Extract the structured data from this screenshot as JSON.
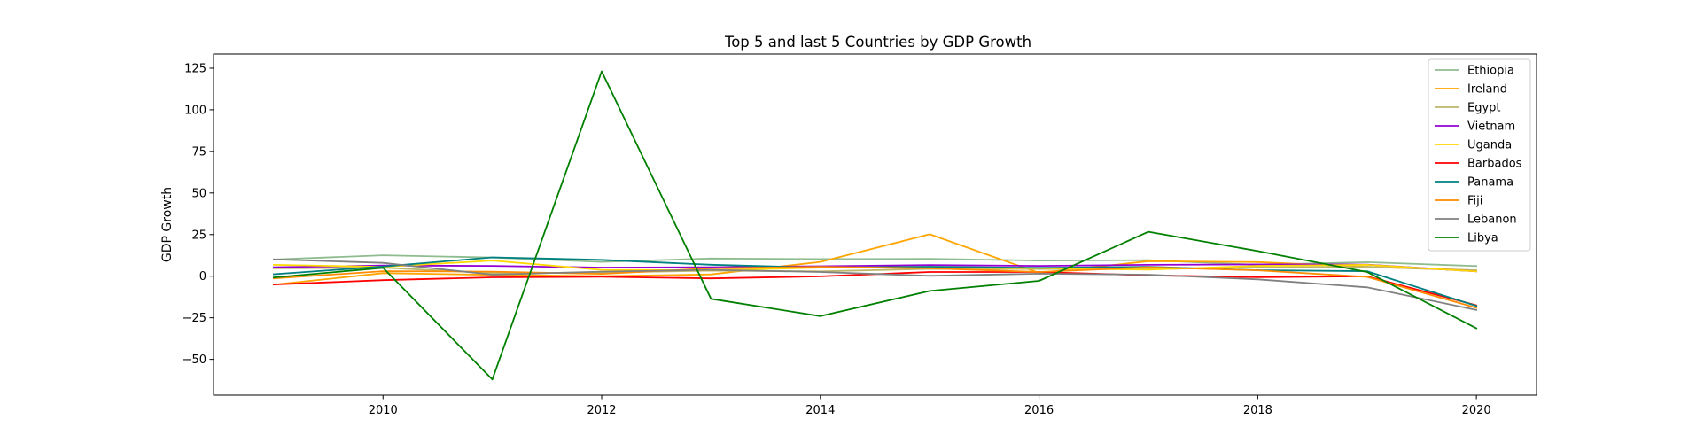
{
  "chart_data": {
    "type": "line",
    "title": "Top 5 and last 5 Countries by GDP Growth",
    "xlabel": "",
    "ylabel": "GDP Growth",
    "x": [
      2009,
      2010,
      2011,
      2012,
      2013,
      2014,
      2015,
      2016,
      2017,
      2018,
      2019,
      2020
    ],
    "xlim": [
      2008.45,
      2020.55
    ],
    "ylim": [
      -71.5,
      133.5
    ],
    "xticks": [
      2010,
      2012,
      2014,
      2016,
      2018,
      2020
    ],
    "yticks": [
      -50,
      -25,
      0,
      25,
      50,
      75,
      100,
      125
    ],
    "grid": false,
    "legend_position": "top-right",
    "series": [
      {
        "name": "Ethiopia",
        "color": "#8fbc8f",
        "values": [
          10.0,
          12.6,
          11.2,
          8.6,
          10.6,
          10.3,
          10.4,
          9.4,
          9.6,
          6.8,
          8.4,
          6.1
        ]
      },
      {
        "name": "Ireland",
        "color": "#ffa500",
        "values": [
          -5.1,
          1.8,
          0.8,
          0.0,
          1.1,
          8.6,
          25.2,
          2.0,
          9.0,
          8.5,
          5.6,
          3.4
        ]
      },
      {
        "name": "Egypt",
        "color": "#bdb76b",
        "values": [
          4.7,
          5.1,
          1.8,
          2.2,
          3.3,
          2.9,
          4.4,
          4.3,
          4.2,
          5.3,
          5.6,
          3.6
        ]
      },
      {
        "name": "Vietnam",
        "color": "#9400d3",
        "values": [
          5.4,
          6.4,
          6.2,
          5.2,
          5.4,
          6.0,
          6.7,
          6.2,
          6.8,
          7.1,
          7.0,
          2.9
        ]
      },
      {
        "name": "Uganda",
        "color": "#ffd700",
        "values": [
          6.8,
          5.6,
          9.4,
          3.8,
          3.6,
          5.1,
          5.2,
          4.8,
          3.9,
          6.2,
          6.8,
          2.9
        ]
      },
      {
        "name": "Barbados",
        "color": "#ff0000",
        "values": [
          -5.0,
          -2.4,
          -0.7,
          -0.3,
          -1.3,
          -0.1,
          2.5,
          2.5,
          0.5,
          -0.6,
          -0.1,
          -17.5
        ]
      },
      {
        "name": "Panama",
        "color": "#008080",
        "values": [
          1.2,
          5.8,
          11.3,
          9.8,
          6.9,
          5.1,
          5.7,
          5.0,
          5.6,
          3.6,
          3.0,
          -17.9
        ]
      },
      {
        "name": "Fiji",
        "color": "#ff8c00",
        "values": [
          -1.3,
          3.0,
          2.7,
          1.4,
          4.7,
          5.6,
          4.7,
          2.5,
          5.4,
          3.5,
          -0.4,
          -19.0
        ]
      },
      {
        "name": "Lebanon",
        "color": "#808080",
        "values": [
          10.1,
          8.0,
          0.9,
          2.7,
          3.8,
          2.5,
          0.2,
          1.5,
          0.9,
          -1.9,
          -6.7,
          -20.3
        ]
      },
      {
        "name": "Libya",
        "color": "#008000",
        "values": [
          -0.8,
          5.0,
          -62.1,
          123.1,
          -13.6,
          -24.0,
          -8.9,
          -2.8,
          26.7,
          15.1,
          2.5,
          -31.3
        ]
      }
    ]
  }
}
